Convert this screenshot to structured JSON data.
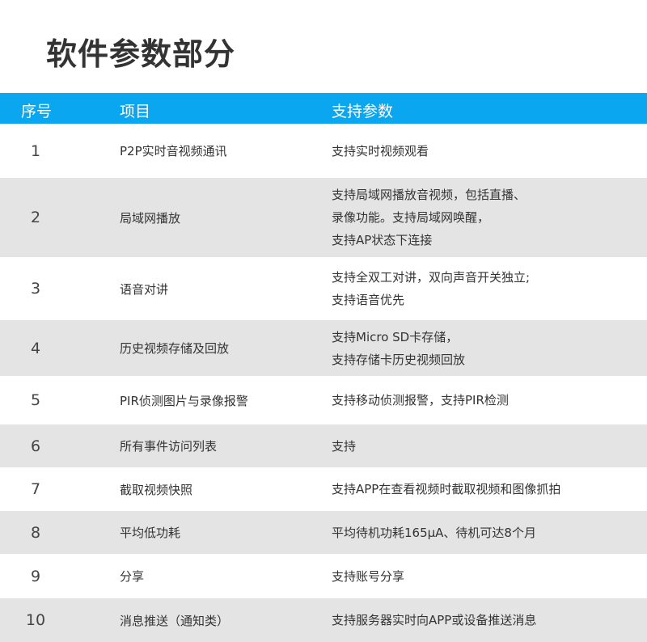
{
  "title": "软件参数部分",
  "header": {
    "num": "序号",
    "item": "项目",
    "param": "支持参数"
  },
  "colors": {
    "header_bg": "#0aa6f0",
    "stripe": "#e4e4e4"
  },
  "rows": [
    {
      "num": "1",
      "item": "P2P实时音视频通讯",
      "param": "支持实时视频观看"
    },
    {
      "num": "2",
      "item": "局域网播放",
      "param": "支持局域网播放音视频，包括直播、\n录像功能。支持局域网唤醒，\n支持AP状态下连接"
    },
    {
      "num": "3",
      "item": "语音对讲",
      "param": "支持全双工对讲，双向声音开关独立;\n支持语音优先"
    },
    {
      "num": "4",
      "item": "历史视频存储及回放",
      "param": "支持Micro SD卡存储，\n支持存储卡历史视频回放"
    },
    {
      "num": "5",
      "item": "PIR侦测图片与录像报警",
      "param": "支持移动侦测报警，支持PIR检测"
    },
    {
      "num": "6",
      "item": "所有事件访问列表",
      "param": "支持"
    },
    {
      "num": "7",
      "item": "截取视频快照",
      "param": "支持APP在查看视频时截取视频和图像抓拍"
    },
    {
      "num": "8",
      "item": "平均低功耗",
      "param": "平均待机功耗165μA、待机可达8个月"
    },
    {
      "num": "9",
      "item": "分享",
      "param": "支持账号分享"
    },
    {
      "num": "10",
      "item": "消息推送（通知类）",
      "param": "支持服务器实时向APP或设备推送消息"
    }
  ]
}
